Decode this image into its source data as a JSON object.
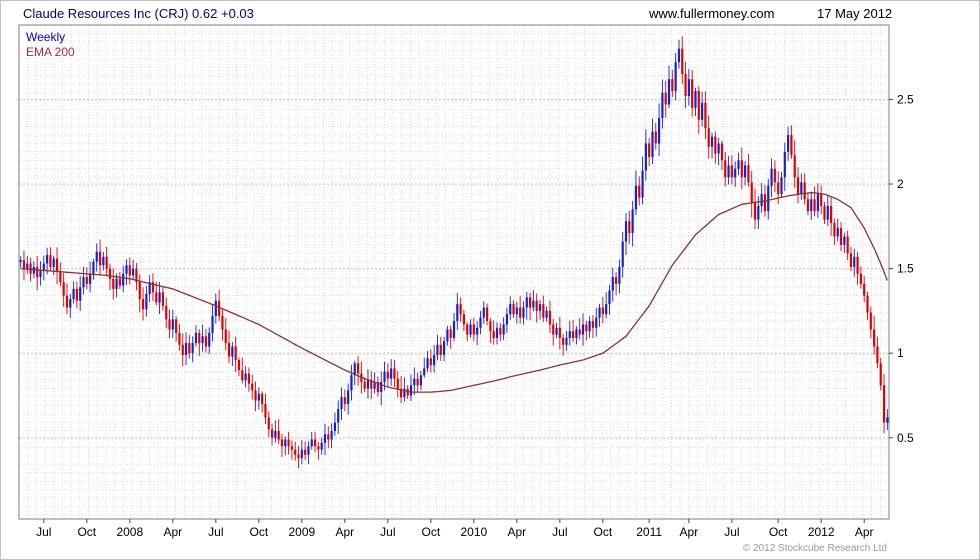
{
  "header": {
    "title": "Claude Resources Inc (CRJ) 0.62 +0.03",
    "site": "www.fullermoney.com",
    "date": "17 May 2012"
  },
  "legend": {
    "timeframe": "Weekly",
    "overlay": "EMA 200"
  },
  "footer": {
    "copyright": "© 2012 Stockcube Research Ltd"
  },
  "chart_data": {
    "type": "candlestick",
    "title": "Claude Resources Inc (CRJ)",
    "interval": "weekly",
    "last_close": 0.62,
    "change": "+0.03",
    "grid": true,
    "y_axis_side": "right",
    "y_ticks": [
      0.5,
      1,
      1.5,
      2,
      2.5
    ],
    "y_range": [
      0.02,
      2.94
    ],
    "x_ticks": [
      {
        "label": "Jul",
        "week": 7
      },
      {
        "label": "Oct",
        "week": 20
      },
      {
        "label": "2008",
        "week": 33
      },
      {
        "label": "Apr",
        "week": 46
      },
      {
        "label": "Jul",
        "week": 59
      },
      {
        "label": "Oct",
        "week": 72
      },
      {
        "label": "2009",
        "week": 85
      },
      {
        "label": "Apr",
        "week": 98
      },
      {
        "label": "Jul",
        "week": 111
      },
      {
        "label": "Oct",
        "week": 124
      },
      {
        "label": "2010",
        "week": 137
      },
      {
        "label": "Apr",
        "week": 150
      },
      {
        "label": "Jul",
        "week": 163
      },
      {
        "label": "Oct",
        "week": 176
      },
      {
        "label": "2011",
        "week": 190
      },
      {
        "label": "Apr",
        "week": 202
      },
      {
        "label": "Jul",
        "week": 215
      },
      {
        "label": "Oct",
        "week": 229
      },
      {
        "label": "2012",
        "week": 242
      },
      {
        "label": "Apr",
        "week": 255
      }
    ],
    "closes": [
      1.55,
      1.5,
      1.53,
      1.47,
      1.51,
      1.45,
      1.49,
      1.53,
      1.58,
      1.51,
      1.56,
      1.48,
      1.42,
      1.34,
      1.27,
      1.32,
      1.38,
      1.31,
      1.39,
      1.45,
      1.41,
      1.47,
      1.54,
      1.6,
      1.52,
      1.57,
      1.5,
      1.44,
      1.38,
      1.44,
      1.4,
      1.47,
      1.52,
      1.46,
      1.5,
      1.42,
      1.32,
      1.26,
      1.35,
      1.42,
      1.36,
      1.3,
      1.36,
      1.28,
      1.2,
      1.14,
      1.2,
      1.12,
      1.05,
      0.99,
      1.06,
      1.0,
      1.06,
      1.12,
      1.06,
      1.1,
      1.04,
      1.12,
      1.22,
      1.31,
      1.22,
      1.14,
      1.06,
      0.98,
      1.04,
      0.96,
      0.9,
      0.84,
      0.88,
      0.82,
      0.78,
      0.72,
      0.76,
      0.7,
      0.62,
      0.55,
      0.5,
      0.54,
      0.49,
      0.45,
      0.49,
      0.45,
      0.43,
      0.4,
      0.38,
      0.43,
      0.4,
      0.45,
      0.49,
      0.45,
      0.43,
      0.47,
      0.52,
      0.49,
      0.54,
      0.59,
      0.67,
      0.74,
      0.7,
      0.78,
      0.87,
      0.94,
      0.88,
      0.83,
      0.79,
      0.84,
      0.79,
      0.83,
      0.77,
      0.83,
      0.89,
      0.85,
      0.91,
      0.85,
      0.79,
      0.74,
      0.79,
      0.75,
      0.81,
      0.85,
      0.81,
      0.87,
      0.91,
      0.97,
      0.93,
      0.99,
      1.05,
      0.99,
      1.07,
      1.14,
      1.09,
      1.19,
      1.29,
      1.23,
      1.17,
      1.11,
      1.17,
      1.11,
      1.15,
      1.21,
      1.27,
      1.19,
      1.13,
      1.09,
      1.15,
      1.11,
      1.17,
      1.23,
      1.29,
      1.23,
      1.27,
      1.21,
      1.27,
      1.33,
      1.27,
      1.31,
      1.25,
      1.29,
      1.21,
      1.25,
      1.17,
      1.11,
      1.15,
      1.09,
      1.05,
      1.09,
      1.13,
      1.09,
      1.14,
      1.11,
      1.17,
      1.13,
      1.19,
      1.15,
      1.21,
      1.27,
      1.23,
      1.29,
      1.37,
      1.45,
      1.41,
      1.51,
      1.66,
      1.78,
      1.71,
      1.85,
      1.99,
      1.92,
      2.08,
      2.24,
      2.16,
      2.31,
      2.24,
      2.39,
      2.54,
      2.47,
      2.62,
      2.55,
      2.72,
      2.8,
      2.65,
      2.52,
      2.62,
      2.45,
      2.55,
      2.38,
      2.48,
      2.33,
      2.22,
      2.28,
      2.18,
      2.24,
      2.14,
      2.04,
      2.11,
      2.04,
      2.09,
      2.14,
      2.04,
      2.11,
      2.01,
      1.89,
      1.79,
      1.87,
      1.94,
      1.84,
      1.99,
      2.09,
      2.01,
      1.94,
      2.04,
      2.19,
      2.29,
      2.17,
      2.04,
      1.94,
      2.01,
      1.91,
      1.84,
      1.91,
      1.84,
      1.94,
      1.87,
      1.79,
      1.87,
      1.77,
      1.69,
      1.74,
      1.64,
      1.69,
      1.59,
      1.51,
      1.57,
      1.47,
      1.41,
      1.34,
      1.24,
      1.14,
      1.04,
      0.94,
      0.81,
      0.59,
      0.62
    ],
    "ema_anchors": [
      [
        0,
        1.5
      ],
      [
        13,
        1.48
      ],
      [
        26,
        1.46
      ],
      [
        33,
        1.44
      ],
      [
        46,
        1.38
      ],
      [
        59,
        1.28
      ],
      [
        72,
        1.17
      ],
      [
        85,
        1.03
      ],
      [
        92,
        0.96
      ],
      [
        98,
        0.9
      ],
      [
        104,
        0.85
      ],
      [
        111,
        0.8
      ],
      [
        118,
        0.77
      ],
      [
        124,
        0.77
      ],
      [
        130,
        0.78
      ],
      [
        137,
        0.81
      ],
      [
        144,
        0.84
      ],
      [
        150,
        0.87
      ],
      [
        157,
        0.9
      ],
      [
        163,
        0.93
      ],
      [
        170,
        0.96
      ],
      [
        176,
        1.0
      ],
      [
        183,
        1.1
      ],
      [
        190,
        1.28
      ],
      [
        197,
        1.52
      ],
      [
        204,
        1.7
      ],
      [
        211,
        1.82
      ],
      [
        218,
        1.88
      ],
      [
        225,
        1.9
      ],
      [
        232,
        1.93
      ],
      [
        239,
        1.95
      ],
      [
        243,
        1.94
      ],
      [
        247,
        1.91
      ],
      [
        251,
        1.86
      ],
      [
        255,
        1.74
      ],
      [
        258,
        1.62
      ],
      [
        260,
        1.53
      ],
      [
        262,
        1.43
      ]
    ],
    "colors": {
      "up": "#1322cc",
      "down": "#e00000",
      "ema": "#8b3232",
      "title": "#000080",
      "frame": "#7f7f7f",
      "grid": "#d9d9d9"
    }
  }
}
